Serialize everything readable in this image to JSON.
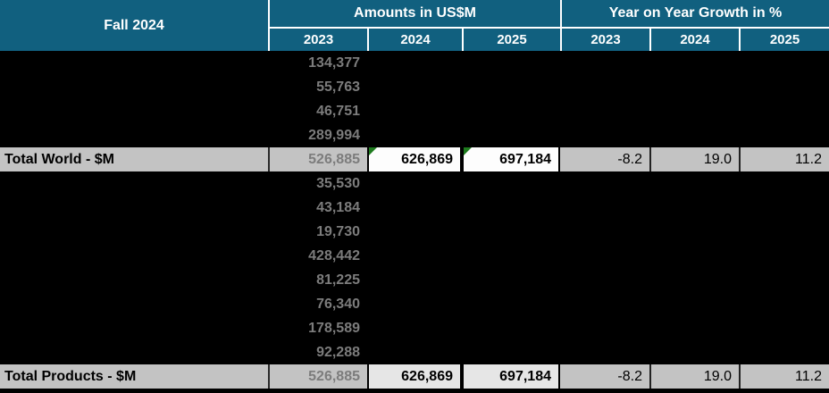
{
  "header": {
    "corner_label": "Fall 2024",
    "groups": [
      {
        "label": "Amounts in US$M",
        "years": [
          "2023",
          "2024",
          "2025"
        ]
      },
      {
        "label": "Year on Year Growth in %",
        "years": [
          "2023",
          "2024",
          "2025"
        ]
      }
    ]
  },
  "colors": {
    "header_bg": "#11607F",
    "header_text": "#FFFFFF",
    "body_bg": "#000000",
    "muted_number_text": "#7C7C7C",
    "total_row_bg": "#C3C3C3",
    "highlight_cell_bg": "#FFFFFF",
    "error_indicator_green": "#1E7B1E"
  },
  "table": {
    "rows": [
      {
        "type": "data",
        "label": "",
        "a2023": "134,377",
        "a2024": "",
        "a2025": "",
        "g2023": "",
        "g2024": "",
        "g2025": ""
      },
      {
        "type": "data",
        "label": "",
        "a2023": "55,763",
        "a2024": "",
        "a2025": "",
        "g2023": "",
        "g2024": "",
        "g2025": ""
      },
      {
        "type": "data",
        "label": "",
        "a2023": "46,751",
        "a2024": "",
        "a2025": "",
        "g2023": "",
        "g2024": "",
        "g2025": ""
      },
      {
        "type": "data",
        "label": "",
        "a2023": "289,994",
        "a2024": "",
        "a2025": "",
        "g2023": "",
        "g2024": "",
        "g2025": ""
      },
      {
        "type": "total",
        "variant": "world",
        "error_indicators": true,
        "label": "Total World - $M",
        "a2023": "526,885",
        "a2024": "626,869",
        "a2025": "697,184",
        "g2023": "-8.2",
        "g2024": "19.0",
        "g2025": "11.2"
      },
      {
        "type": "data",
        "label": "",
        "a2023": "35,530",
        "a2024": "",
        "a2025": "",
        "g2023": "",
        "g2024": "",
        "g2025": ""
      },
      {
        "type": "data",
        "label": "",
        "a2023": "43,184",
        "a2024": "",
        "a2025": "",
        "g2023": "",
        "g2024": "",
        "g2025": ""
      },
      {
        "type": "data",
        "label": "",
        "a2023": "19,730",
        "a2024": "",
        "a2025": "",
        "g2023": "",
        "g2024": "",
        "g2025": ""
      },
      {
        "type": "data",
        "label": "",
        "a2023": "428,442",
        "a2024": "",
        "a2025": "",
        "g2023": "",
        "g2024": "",
        "g2025": ""
      },
      {
        "type": "data",
        "label": "",
        "a2023": "81,225",
        "a2024": "",
        "a2025": "",
        "g2023": "",
        "g2024": "",
        "g2025": ""
      },
      {
        "type": "data",
        "label": "",
        "a2023": "76,340",
        "a2024": "",
        "a2025": "",
        "g2023": "",
        "g2024": "",
        "g2025": ""
      },
      {
        "type": "data",
        "label": "",
        "a2023": "178,589",
        "a2024": "",
        "a2025": "",
        "g2023": "",
        "g2024": "",
        "g2025": ""
      },
      {
        "type": "data",
        "label": "",
        "a2023": "92,288",
        "a2024": "",
        "a2025": "",
        "g2023": "",
        "g2024": "",
        "g2025": ""
      },
      {
        "type": "total",
        "variant": "products",
        "error_indicators": false,
        "label": "Total Products - $M",
        "a2023": "526,885",
        "a2024": "626,869",
        "a2025": "697,184",
        "g2023": "-8.2",
        "g2024": "19.0",
        "g2025": "11.2"
      }
    ]
  }
}
